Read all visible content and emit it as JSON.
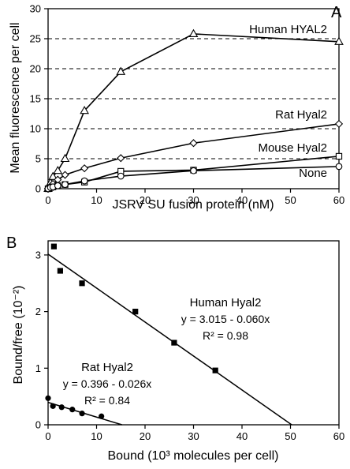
{
  "chart_data": [
    {
      "panel": "A",
      "type": "line",
      "xlabel": "JSRV SU fusion protein (nM)",
      "ylabel": "Mean fluorescence per cell",
      "xlim": [
        0,
        60
      ],
      "ylim": [
        0,
        30
      ],
      "xticks": [
        0,
        10,
        20,
        30,
        40,
        50,
        60
      ],
      "yticks": [
        0,
        5,
        10,
        15,
        20,
        25,
        30
      ],
      "dashed_gridlines_y": [
        5,
        10,
        15,
        20,
        25
      ],
      "series": [
        {
          "name": "Human HYAL2",
          "marker": "triangle",
          "x": [
            0,
            0.5,
            1,
            2,
            3.5,
            7.5,
            15,
            30,
            60
          ],
          "y": [
            0,
            1,
            2,
            3,
            5,
            13,
            19.5,
            25.8,
            24.5
          ]
        },
        {
          "name": "Rat Hyal2",
          "marker": "diamond",
          "x": [
            0,
            0.5,
            1,
            2,
            3.5,
            7.5,
            15,
            30,
            60
          ],
          "y": [
            0,
            0.4,
            0.8,
            1.5,
            2.3,
            3.4,
            5.1,
            7.6,
            10.8
          ]
        },
        {
          "name": "Mouse Hyal2",
          "marker": "square",
          "x": [
            0,
            0.5,
            1,
            2,
            3.5,
            7.5,
            15,
            30,
            60
          ],
          "y": [
            0,
            0.2,
            0.3,
            0.5,
            0.7,
            1.1,
            2.9,
            3.1,
            5.4
          ]
        },
        {
          "name": "None",
          "marker": "circle",
          "x": [
            0,
            0.5,
            1,
            2,
            3.5,
            7.5,
            15,
            30,
            60
          ],
          "y": [
            0,
            0.2,
            0.3,
            0.5,
            0.7,
            1.3,
            2.1,
            3.0,
            3.7
          ]
        }
      ]
    },
    {
      "panel": "B",
      "type": "scatter",
      "xlabel": "Bound (10³ molecules per cell)",
      "ylabel": "Bound/free (10⁻²)",
      "xlim": [
        0,
        60
      ],
      "ylim": [
        0,
        3.25
      ],
      "xticks": [
        0,
        10,
        20,
        30,
        40,
        50,
        60
      ],
      "yticks": [
        0,
        1,
        2,
        3
      ],
      "series": [
        {
          "name": "Human Hyal2",
          "marker": "square-filled",
          "x": [
            1.2,
            2.5,
            7,
            18,
            26,
            34.5
          ],
          "y": [
            3.15,
            2.72,
            2.5,
            2.0,
            1.45,
            0.96
          ],
          "fit": {
            "intercept": 3.015,
            "slope": -0.06
          },
          "annotation": [
            "Human Hyal2",
            "y = 3.015 - 0.060x",
            "R² = 0.98"
          ]
        },
        {
          "name": "Rat Hyal2",
          "marker": "circle-filled",
          "x": [
            0,
            1,
            2.8,
            5,
            7,
            11
          ],
          "y": [
            0.47,
            0.33,
            0.31,
            0.27,
            0.2,
            0.15
          ],
          "fit": {
            "intercept": 0.396,
            "slope": -0.026
          },
          "annotation": [
            "Rat Hyal2",
            "y = 0.396 - 0.026x",
            "R² = 0.84"
          ]
        }
      ]
    }
  ]
}
